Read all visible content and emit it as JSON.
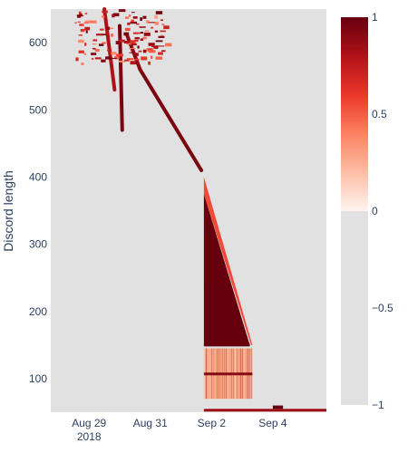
{
  "chart_data": {
    "type": "heatmap",
    "title": "",
    "xlabel": "",
    "ylabel": "Discord length",
    "x_range": [
      "2018-08-27T18:00",
      "2018-09-05T18:00"
    ],
    "y_range": [
      50,
      650
    ],
    "x_ticks": [
      {
        "date": "2018-08-29",
        "label": "Aug 29",
        "sublabel": "2018"
      },
      {
        "date": "2018-08-31",
        "label": "Aug 31",
        "sublabel": ""
      },
      {
        "date": "2018-09-02",
        "label": "Sep 2",
        "sublabel": ""
      },
      {
        "date": "2018-09-04",
        "label": "Sep 4",
        "sublabel": ""
      }
    ],
    "y_ticks": [
      100,
      200,
      300,
      400,
      500,
      600
    ],
    "colorscale": {
      "name": "Reds",
      "range": [
        -1,
        1
      ],
      "ticks": [
        1,
        0.5,
        0,
        -0.5,
        -1
      ],
      "tick_labels": [
        "1",
        "0.5",
        "0",
        "−0.5",
        "−1"
      ],
      "background_color": "#e1e1e1",
      "stops": [
        "#fff5f0",
        "#fdbea5",
        "#fc8161",
        "#eb362a",
        "#b11218",
        "#67000d"
      ]
    },
    "features": [
      {
        "name": "solid-high-triangle",
        "value": 1.0,
        "points": [
          [
            "2018-09-01T18:00",
            375
          ],
          [
            "2018-09-01T18:00",
            150
          ],
          [
            "2018-09-03T06:00",
            150
          ]
        ]
      },
      {
        "name": "upper-diagonal-band",
        "value": 0.55,
        "points": [
          [
            "2018-09-01T18:00",
            400
          ],
          [
            "2018-09-01T18:00",
            375
          ],
          [
            "2018-09-03T07:00",
            150
          ],
          [
            "2018-09-03T08:00",
            150
          ]
        ]
      },
      {
        "name": "diagonal-stripe-to-401",
        "value": 0.95,
        "points": [
          [
            "2018-08-30T16:00",
            560
          ],
          [
            "2018-09-01T16:00",
            410
          ]
        ]
      },
      {
        "name": "diagonal-stripe-upper",
        "value": 0.9,
        "points": [
          [
            "2018-08-30T06:00",
            610
          ],
          [
            "2018-08-30T16:00",
            560
          ]
        ]
      },
      {
        "name": "spike-left",
        "value": 0.8,
        "points": [
          [
            "2018-08-29T12:00",
            650
          ],
          [
            "2018-08-29T20:00",
            530
          ]
        ]
      },
      {
        "name": "spike-center",
        "value": 0.95,
        "points": [
          [
            "2018-08-30T00:00",
            625
          ],
          [
            "2018-08-30T02:00",
            470
          ]
        ]
      },
      {
        "name": "mid-speckle-band",
        "value": 0.35,
        "y_range": [
          70,
          145
        ],
        "x_range": [
          "2018-09-01T18:00",
          "2018-09-03T08:00"
        ]
      },
      {
        "name": "band-line-150",
        "value": 1.0,
        "y": 150,
        "x_range": [
          "2018-09-01T18:00",
          "2018-09-03T06:00"
        ]
      },
      {
        "name": "band-line-107",
        "value": 0.9,
        "y": 107,
        "x_range": [
          "2018-09-01T18:00",
          "2018-09-03T08:00"
        ]
      },
      {
        "name": "bottom-line-53",
        "value": 0.85,
        "y": 53,
        "x_range": [
          "2018-09-01T18:00",
          "2018-09-05T18:00"
        ]
      },
      {
        "name": "small-blob-sep4",
        "value": 1.0,
        "y_range": [
          55,
          60
        ],
        "x_range": [
          "2018-09-04T00:00",
          "2018-09-04T08:00"
        ]
      },
      {
        "name": "top-scatter",
        "value": 0.6,
        "y_range": [
          570,
          650
        ],
        "x_range": [
          "2018-08-28T12:00",
          "2018-08-31T12:00"
        ]
      }
    ]
  }
}
